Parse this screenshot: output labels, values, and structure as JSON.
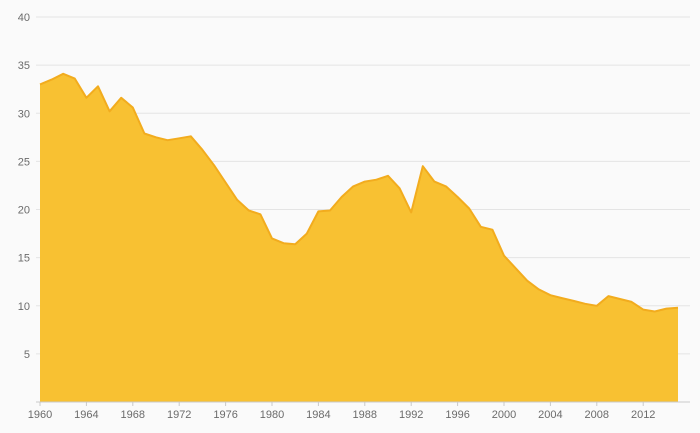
{
  "chart_data": {
    "type": "area",
    "title": "",
    "xlabel": "",
    "ylabel": "",
    "x": [
      1960,
      1961,
      1962,
      1963,
      1964,
      1965,
      1966,
      1967,
      1968,
      1969,
      1970,
      1971,
      1972,
      1973,
      1974,
      1975,
      1976,
      1977,
      1978,
      1979,
      1980,
      1981,
      1982,
      1983,
      1984,
      1985,
      1986,
      1987,
      1988,
      1989,
      1990,
      1991,
      1992,
      1993,
      1994,
      1995,
      1996,
      1997,
      1998,
      1999,
      2000,
      2001,
      2002,
      2003,
      2004,
      2005,
      2006,
      2007,
      2008,
      2009,
      2010,
      2011,
      2012,
      2013,
      2014,
      2015
    ],
    "values": [
      33.0,
      33.5,
      34.1,
      33.6,
      31.6,
      32.8,
      30.2,
      31.6,
      30.6,
      27.9,
      27.5,
      27.2,
      27.4,
      27.6,
      26.2,
      24.6,
      22.8,
      21.0,
      19.9,
      19.5,
      17.0,
      16.5,
      16.4,
      17.5,
      19.8,
      19.9,
      21.3,
      22.4,
      22.9,
      23.1,
      23.5,
      22.2,
      19.7,
      24.5,
      22.9,
      22.4,
      21.3,
      20.1,
      18.2,
      17.9,
      15.2,
      13.9,
      12.6,
      11.7,
      11.1,
      10.8,
      10.5,
      10.2,
      10.0,
      11.0,
      10.7,
      10.4,
      9.6,
      9.4,
      9.7,
      9.8
    ],
    "xlim": [
      1960,
      2015
    ],
    "ylim": [
      0,
      40
    ],
    "yticks": [
      5,
      10,
      15,
      20,
      25,
      30,
      35,
      40
    ],
    "xticks": [
      1960,
      1964,
      1968,
      1972,
      1976,
      1980,
      1984,
      1988,
      1992,
      1996,
      2000,
      2004,
      2008,
      2012
    ],
    "grid": "on",
    "legend": "none",
    "colors": {
      "fill": "#F8C132",
      "stroke": "#F2AC1E",
      "grid": "#e4e4e4",
      "axis": "#c9c9c9",
      "tick": "#c9c9c9",
      "label": "#6b6b6b",
      "background": "#fafafa"
    }
  }
}
